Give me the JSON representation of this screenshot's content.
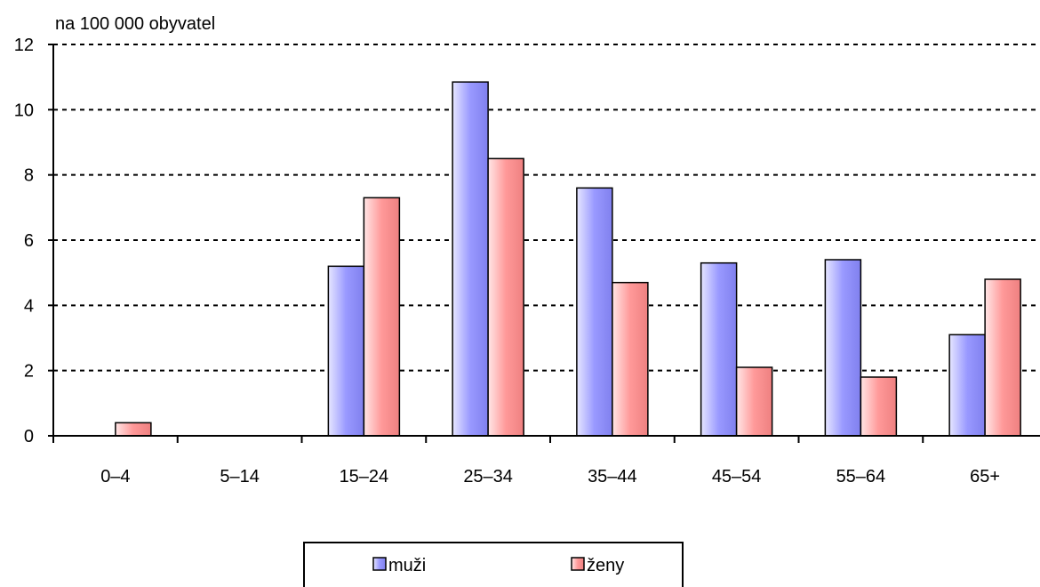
{
  "chart_data": {
    "type": "bar",
    "unit_label": "na 100 000 obyvatel",
    "categories": [
      "0–4",
      "5–14",
      "15–24",
      "25–34",
      "35–44",
      "45–54",
      "55–64",
      "65+"
    ],
    "series": [
      {
        "name": "muži",
        "color": "#9999ff",
        "values": [
          0,
          0,
          5.2,
          10.85,
          7.6,
          5.3,
          5.4,
          3.1
        ]
      },
      {
        "name": "ženy",
        "color": "#ff9999",
        "values": [
          0.4,
          0,
          7.3,
          8.5,
          4.7,
          2.1,
          1.8,
          4.8
        ]
      }
    ],
    "ylim": [
      0,
      12
    ],
    "yticks": [
      0,
      2,
      4,
      6,
      8,
      10,
      12
    ],
    "grid": true,
    "grid_style": "dotted",
    "legend_position": "bottom"
  }
}
